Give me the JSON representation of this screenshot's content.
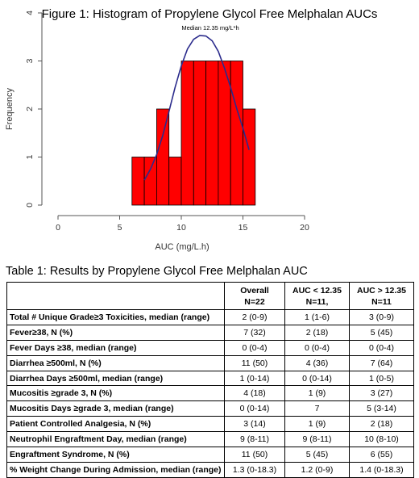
{
  "chart_data": {
    "type": "bar",
    "title": "Figure 1: Histogram of Propylene Glycol Free Melphalan AUCs",
    "xlabel": "AUC (mg/L.h)",
    "ylabel": "Frequency",
    "xlim": [
      0,
      20
    ],
    "ylim": [
      0,
      4
    ],
    "x_ticks": [
      "0",
      "5",
      "10",
      "15",
      "20"
    ],
    "y_ticks": [
      "0",
      "1",
      "2",
      "3",
      "4"
    ],
    "bins": [
      {
        "start": 6.0,
        "end": 7.0,
        "count": 1
      },
      {
        "start": 7.0,
        "end": 8.0,
        "count": 1
      },
      {
        "start": 8.0,
        "end": 9.0,
        "count": 2
      },
      {
        "start": 9.0,
        "end": 10.0,
        "count": 1
      },
      {
        "start": 10.0,
        "end": 11.0,
        "count": 3
      },
      {
        "start": 11.0,
        "end": 12.0,
        "count": 3
      },
      {
        "start": 12.0,
        "end": 13.0,
        "count": 3
      },
      {
        "start": 13.0,
        "end": 14.0,
        "count": 3
      },
      {
        "start": 14.0,
        "end": 15.0,
        "count": 3
      },
      {
        "start": 15.0,
        "end": 16.0,
        "count": 2
      }
    ],
    "bar_color": "#ff0000",
    "curve_color": "#2b2b8c",
    "curve": [
      [
        7.0,
        0.52
      ],
      [
        7.5,
        0.75
      ],
      [
        8.0,
        1.05
      ],
      [
        8.5,
        1.45
      ],
      [
        9.0,
        1.95
      ],
      [
        9.5,
        2.45
      ],
      [
        10.0,
        2.9
      ],
      [
        10.5,
        3.25
      ],
      [
        11.0,
        3.45
      ],
      [
        11.5,
        3.53
      ],
      [
        12.0,
        3.52
      ],
      [
        12.5,
        3.42
      ],
      [
        13.0,
        3.2
      ],
      [
        13.5,
        2.85
      ],
      [
        14.0,
        2.45
      ],
      [
        14.5,
        2.0
      ],
      [
        15.0,
        1.6
      ],
      [
        15.5,
        1.15
      ]
    ],
    "annotation": "Median 12.35 mg/L*h"
  },
  "table": {
    "title": "Table 1: Results by Propylene Glycol Free Melphalan AUC",
    "headers": [
      {
        "line1": "",
        "line2": ""
      },
      {
        "line1": "Overall",
        "line2": "N=22"
      },
      {
        "line1": "AUC < 12.35",
        "line2": "N=11,"
      },
      {
        "line1": "AUC > 12.35",
        "line2": "N=11"
      }
    ],
    "rows": [
      {
        "label": "Total # Unique Grade≥3 Toxicities, median (range)",
        "values": [
          "2 (0-9)",
          "1 (1-6)",
          "3 (0-9)"
        ]
      },
      {
        "label": "Fever≥38, N (%)",
        "values": [
          "7 (32)",
          "2 (18)",
          "5 (45)"
        ]
      },
      {
        "label": "Fever Days ≥38, median (range)",
        "values": [
          "0 (0-4)",
          "0 (0-4)",
          "0 (0-4)"
        ]
      },
      {
        "label": "Diarrhea ≥500ml, N (%)",
        "values": [
          "11 (50)",
          "4 (36)",
          "7 (64)"
        ]
      },
      {
        "label": "Diarrhea Days ≥500ml, median (range)",
        "values": [
          "1 (0-14)",
          "0 (0-14)",
          "1 (0-5)"
        ]
      },
      {
        "label": "Mucositis ≥grade 3, N (%)",
        "values": [
          "4 (18)",
          "1 (9)",
          "3 (27)"
        ]
      },
      {
        "label": "Mucositis Days ≥grade 3, median (range)",
        "values": [
          "0 (0-14)",
          "7",
          "5 (3-14)"
        ]
      },
      {
        "label": "Patient Controlled Analgesia, N (%)",
        "values": [
          "3 (14)",
          "1 (9)",
          "2 (18)"
        ]
      },
      {
        "label": "Neutrophil Engraftment Day, median (range)",
        "values": [
          "9 (8-11)",
          "9 (8-11)",
          "10 (8-10)"
        ]
      },
      {
        "label": "Engraftment Syndrome, N (%)",
        "values": [
          "11 (50)",
          "5 (45)",
          "6 (55)"
        ]
      },
      {
        "label": "% Weight Change During Admission, median (range)",
        "values": [
          "1.3 (0-18.3)",
          "1.2 (0-9)",
          "1.4 (0-18.3)"
        ]
      }
    ]
  }
}
